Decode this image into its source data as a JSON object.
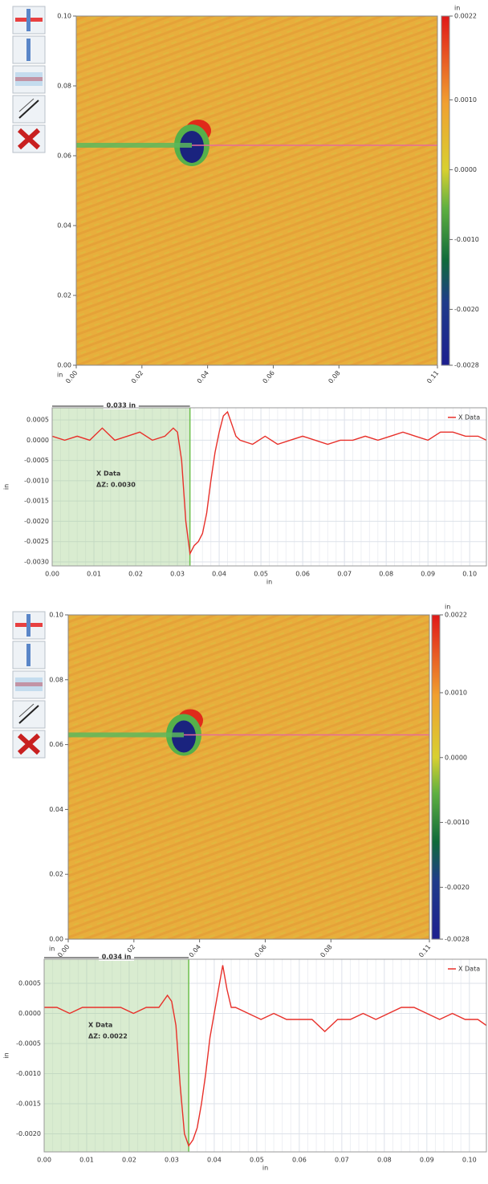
{
  "chart_data": [
    {
      "type": "heatmap",
      "x_label": "in",
      "xlim": [
        0,
        0.11
      ],
      "ylim": [
        0,
        0.1
      ],
      "xticks": [
        {
          "value": 0,
          "label": "0.00"
        },
        0.02,
        0.04,
        0.06,
        0.08,
        0.11
      ],
      "yticks": [
        {
          "value": 0,
          "label": "0.00"
        },
        0.02,
        0.04,
        0.06,
        0.08,
        {
          "value": 0.1,
          "label": "0.10"
        }
      ],
      "colorbar_label": "in",
      "colorbar_lim": [
        -0.0028,
        0.0022
      ],
      "colorbar_ticks": [
        0.0022,
        {
          "value": 0.001,
          "label": "0.0010"
        },
        {
          "value": 0,
          "label": "0.0000"
        },
        {
          "value": -0.001,
          "label": "-0.0010"
        },
        {
          "value": -0.002,
          "label": "-0.0020"
        },
        -0.0028
      ]
    },
    {
      "type": "line",
      "x_label": "in",
      "y_label": "in",
      "xlim": [
        0,
        0.104
      ],
      "ylim": [
        -0.0031,
        0.0008
      ],
      "xticks": [
        {
          "value": 0,
          "label": "0.00"
        },
        0.01,
        0.02,
        0.03,
        0.04,
        0.05,
        0.06,
        0.07,
        0.08,
        0.09,
        {
          "value": 0.1,
          "label": "0.10"
        }
      ],
      "yticks": [
        0.0005,
        {
          "value": 0,
          "label": "0.0000"
        },
        -0.0005,
        {
          "value": -0.001,
          "label": "-0.0010"
        },
        -0.0015,
        {
          "value": -0.002,
          "label": "-0.0020"
        },
        -0.0025,
        {
          "value": -0.003,
          "label": "-0.0030"
        }
      ],
      "span": {
        "value": 0.033,
        "label": "0.033 in"
      },
      "annotations": [
        "X Data",
        "ΔZ: 0.0030"
      ],
      "x": [
        0,
        0.003,
        0.006,
        0.009,
        0.012,
        0.015,
        0.018,
        0.021,
        0.024,
        0.027,
        0.029,
        0.03,
        0.031,
        0.032,
        0.033,
        0.034,
        0.035,
        0.036,
        0.037,
        0.038,
        0.039,
        0.04,
        0.041,
        0.042,
        0.043,
        0.044,
        0.045,
        0.048,
        0.051,
        0.054,
        0.057,
        0.06,
        0.063,
        0.066,
        0.069,
        0.072,
        0.075,
        0.078,
        0.081,
        0.084,
        0.087,
        0.09,
        0.093,
        0.096,
        0.099,
        0.102,
        0.104
      ],
      "series": [
        {
          "name": "X Data",
          "color": "#e8302a",
          "values": [
            0.0001,
            0.0,
            0.0001,
            0.0,
            0.0003,
            0.0,
            0.0001,
            0.0002,
            0.0,
            0.0001,
            0.0003,
            0.0002,
            -0.0005,
            -0.002,
            -0.0028,
            -0.0026,
            -0.0025,
            -0.0023,
            -0.0018,
            -0.001,
            -0.0003,
            0.0002,
            0.0006,
            0.0007,
            0.0004,
            0.0001,
            0.0,
            -0.0001,
            0.0001,
            -0.0001,
            0.0,
            0.0001,
            0.0,
            -0.0001,
            0.0,
            0.0,
            0.0001,
            0.0,
            0.0001,
            0.0002,
            0.0001,
            0.0,
            0.0002,
            0.0002,
            0.0001,
            0.0001,
            0.0
          ]
        }
      ]
    },
    {
      "type": "heatmap",
      "x_label": "in",
      "xlim": [
        0,
        0.11
      ],
      "ylim": [
        0,
        0.1
      ],
      "xticks": [
        {
          "value": 0,
          "label": "0.00"
        },
        0.02,
        0.04,
        0.06,
        0.08,
        0.11
      ],
      "yticks": [
        {
          "value": 0,
          "label": "0.00"
        },
        0.02,
        0.04,
        0.06,
        0.08,
        {
          "value": 0.1,
          "label": "0.10"
        }
      ],
      "colorbar_label": "in",
      "colorbar_lim": [
        -0.0028,
        0.0022
      ],
      "colorbar_ticks": [
        0.0022,
        {
          "value": 0.001,
          "label": "0.0010"
        },
        {
          "value": 0,
          "label": "0.0000"
        },
        {
          "value": -0.001,
          "label": "-0.0010"
        },
        {
          "value": -0.002,
          "label": "-0.0020"
        },
        -0.0028
      ]
    },
    {
      "type": "line",
      "x_label": "in",
      "y_label": "in",
      "xlim": [
        0,
        0.104
      ],
      "ylim": [
        -0.0023,
        0.0009
      ],
      "xticks": [
        {
          "value": 0,
          "label": "0.00"
        },
        0.01,
        0.02,
        0.03,
        0.04,
        0.05,
        0.06,
        0.07,
        0.08,
        0.09,
        {
          "value": 0.1,
          "label": "0.10"
        }
      ],
      "yticks": [
        0.0005,
        {
          "value": 0,
          "label": "0.0000"
        },
        -0.0005,
        {
          "value": -0.001,
          "label": "-0.0010"
        },
        -0.0015,
        {
          "value": -0.002,
          "label": "-0.0020"
        }
      ],
      "span": {
        "value": 0.034,
        "label": "0.034 in"
      },
      "annotations": [
        "X Data",
        "ΔZ: 0.0022"
      ],
      "x": [
        0,
        0.003,
        0.006,
        0.009,
        0.012,
        0.015,
        0.018,
        0.021,
        0.024,
        0.027,
        0.029,
        0.03,
        0.031,
        0.032,
        0.033,
        0.034,
        0.035,
        0.036,
        0.037,
        0.038,
        0.039,
        0.04,
        0.041,
        0.042,
        0.043,
        0.044,
        0.045,
        0.048,
        0.051,
        0.054,
        0.057,
        0.06,
        0.063,
        0.066,
        0.069,
        0.072,
        0.075,
        0.078,
        0.081,
        0.084,
        0.087,
        0.09,
        0.093,
        0.096,
        0.099,
        0.102,
        0.104
      ],
      "series": [
        {
          "name": "X Data",
          "color": "#e8302a",
          "values": [
            0.0001,
            0.0001,
            0.0,
            0.0001,
            0.0001,
            0.0001,
            0.0001,
            0.0,
            0.0001,
            0.0001,
            0.0003,
            0.0002,
            -0.0002,
            -0.0012,
            -0.002,
            -0.0022,
            -0.0021,
            -0.0019,
            -0.0015,
            -0.001,
            -0.0004,
            0.0,
            0.0004,
            0.0008,
            0.0004,
            0.0001,
            0.0001,
            0.0,
            -0.0001,
            0.0,
            -0.0001,
            -0.0001,
            -0.0001,
            -0.0003,
            -0.0001,
            -0.0001,
            0.0,
            -0.0001,
            0.0,
            0.0001,
            0.0001,
            0.0,
            -0.0001,
            0.0,
            -0.0001,
            -0.0001,
            -0.0002
          ]
        }
      ]
    }
  ]
}
